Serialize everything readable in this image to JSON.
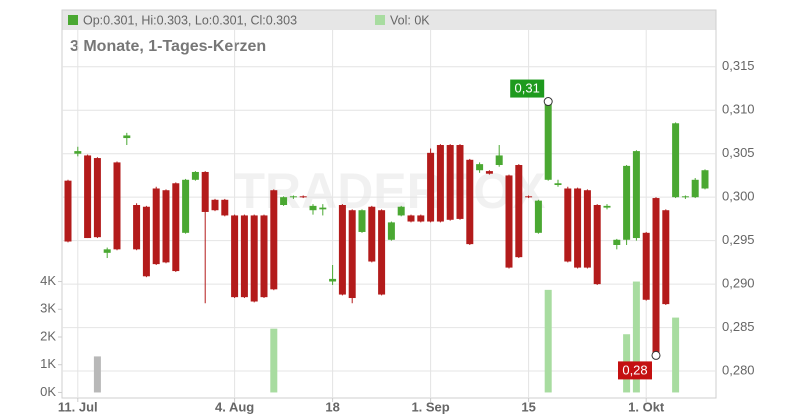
{
  "chart_data": {
    "type": "candlestick",
    "legend": [
      "Op:0.301, Hi:0.303, Lo:0.301, Cl:0.303",
      "Vol: 0K"
    ],
    "legend_colors": [
      "#4aa832",
      "#a8dca0"
    ],
    "subtitle": "3 Monate, 1-Tages-Kerzen",
    "watermark": "TRADERFOX",
    "categories": [
      null,
      "11. Jul",
      null,
      null,
      null,
      null,
      null,
      null,
      null,
      null,
      null,
      null,
      null,
      null,
      null,
      null,
      null,
      "4. Aug",
      null,
      null,
      null,
      null,
      null,
      null,
      null,
      null,
      null,
      "18",
      null,
      null,
      null,
      null,
      null,
      null,
      null,
      null,
      null,
      "1. Sep",
      null,
      null,
      null,
      null,
      null,
      null,
      null,
      null,
      null,
      "15",
      null,
      null,
      null,
      null,
      null,
      null,
      null,
      null,
      null,
      null,
      null,
      "1. Okt",
      null,
      null,
      null,
      null,
      null,
      null
    ],
    "candles": [
      [
        0.3019,
        0.302,
        0.2948,
        0.2949
      ],
      [
        0.305,
        0.3058,
        0.3047,
        0.3053
      ],
      [
        0.3048,
        0.3049,
        0.2953,
        0.2953
      ],
      [
        0.3045,
        0.3046,
        0.2953,
        0.2954
      ],
      [
        0.2936,
        0.2942,
        0.293,
        0.294
      ],
      [
        0.304,
        0.3041,
        0.2939,
        0.294
      ],
      [
        0.3068,
        0.3074,
        0.306,
        0.3071
      ],
      [
        0.2991,
        0.2993,
        0.2939,
        0.294
      ],
      [
        0.2989,
        0.299,
        0.2908,
        0.2909
      ],
      [
        0.301,
        0.3012,
        0.2922,
        0.2923
      ],
      [
        0.3008,
        0.3009,
        0.2924,
        0.2925
      ],
      [
        0.3016,
        0.3017,
        0.2914,
        0.2915
      ],
      [
        0.2959,
        0.3021,
        0.2958,
        0.302
      ],
      [
        0.302,
        0.303,
        0.3019,
        0.3029
      ],
      [
        0.3029,
        0.303,
        0.2878,
        0.2983
      ],
      [
        0.2997,
        0.2998,
        0.2984,
        0.2985
      ],
      [
        0.2997,
        0.2998,
        0.2978,
        0.2979
      ],
      [
        0.2979,
        0.298,
        0.2884,
        0.2885
      ],
      [
        0.2979,
        0.298,
        0.2884,
        0.2885
      ],
      [
        0.2979,
        0.298,
        0.2879,
        0.288
      ],
      [
        0.2979,
        0.298,
        0.2884,
        0.2885
      ],
      [
        0.3008,
        0.3009,
        0.2893,
        0.2894
      ],
      [
        0.2991,
        0.3001,
        0.299,
        0.3
      ],
      [
        0.3,
        0.3002,
        0.2998,
        0.3001
      ],
      [
        0.3001,
        0.3002,
        0.2999,
        0.3
      ],
      [
        0.2985,
        0.2992,
        0.298,
        0.299
      ],
      [
        0.2986,
        0.2992,
        0.2979,
        0.2988
      ],
      [
        0.2903,
        0.2922,
        0.2899,
        0.2906
      ],
      [
        0.2991,
        0.2992,
        0.2887,
        0.2888
      ],
      [
        0.2985,
        0.2986,
        0.2878,
        0.2884
      ],
      [
        0.296,
        0.2986,
        0.2959,
        0.2985
      ],
      [
        0.2989,
        0.299,
        0.2925,
        0.2926
      ],
      [
        0.2985,
        0.2986,
        0.2887,
        0.2888
      ],
      [
        0.2951,
        0.2972,
        0.295,
        0.2971
      ],
      [
        0.2979,
        0.299,
        0.2978,
        0.2989
      ],
      [
        0.2979,
        0.298,
        0.2971,
        0.2972
      ],
      [
        0.2979,
        0.298,
        0.2971,
        0.2972
      ],
      [
        0.3051,
        0.3056,
        0.2971,
        0.2972
      ],
      [
        0.306,
        0.3061,
        0.2971,
        0.2972
      ],
      [
        0.306,
        0.3061,
        0.2973,
        0.2974
      ],
      [
        0.306,
        0.3061,
        0.2974,
        0.2975
      ],
      [
        0.3043,
        0.3044,
        0.2945,
        0.2946
      ],
      [
        0.3031,
        0.304,
        0.3028,
        0.3038
      ],
      [
        0.303,
        0.3031,
        0.3026,
        0.3027
      ],
      [
        0.3037,
        0.306,
        0.3035,
        0.3048
      ],
      [
        0.3025,
        0.3026,
        0.2918,
        0.2919
      ],
      [
        0.3037,
        0.3038,
        0.293,
        0.2931
      ],
      [
        0.3001,
        0.3002,
        0.2999,
        0.3
      ],
      [
        0.2959,
        0.2997,
        0.2958,
        0.2996
      ],
      [
        0.302,
        0.311,
        0.3019,
        0.311
      ],
      [
        0.3014,
        0.302,
        0.3012,
        0.3016
      ],
      [
        0.301,
        0.3012,
        0.2925,
        0.2926
      ],
      [
        0.301,
        0.3011,
        0.2918,
        0.2919
      ],
      [
        0.3008,
        0.3009,
        0.2918,
        0.2919
      ],
      [
        0.2991,
        0.2992,
        0.2899,
        0.29
      ],
      [
        0.2988,
        0.2992,
        0.2986,
        0.299
      ],
      [
        0.2945,
        0.2952,
        0.294,
        0.2951
      ],
      [
        0.2951,
        0.3037,
        0.2945,
        0.3036
      ],
      [
        0.2953,
        0.3054,
        0.295,
        0.3053
      ],
      [
        0.2959,
        0.296,
        0.2881,
        0.2882
      ],
      [
        0.2999,
        0.3,
        0.2818,
        0.2819
      ],
      [
        0.2985,
        0.2986,
        0.2876,
        0.2877
      ],
      [
        0.3,
        0.3086,
        0.2999,
        0.3085
      ],
      [
        0.3,
        0.3002,
        0.2998,
        0.3001
      ],
      [
        0.3,
        0.3022,
        0.2999,
        0.302
      ],
      [
        0.301,
        0.3032,
        0.3009,
        0.3031
      ]
    ],
    "up_color": "#4aa832",
    "down_color": "#b31b1b",
    "volume": [
      0,
      0,
      0,
      1.3,
      0,
      0,
      0,
      0,
      0,
      0,
      0,
      0,
      0,
      0,
      0,
      0,
      0,
      0,
      0,
      0,
      0,
      2.3,
      0,
      0,
      0,
      0,
      0,
      0,
      0,
      0,
      0,
      0,
      0,
      0,
      0,
      0,
      0,
      0,
      0,
      0,
      0,
      0,
      0,
      0,
      0,
      0,
      0,
      0,
      0,
      3.7,
      0,
      0,
      0,
      0,
      0,
      0,
      0,
      2.1,
      4.0,
      0,
      0,
      0,
      2.7,
      0,
      0,
      0
    ],
    "volume_color": "#a8dca0",
    "volume_neutral": [
      3
    ],
    "volume_neutral_color": "#b8b8b8",
    "ylim": [
      0.2769,
      0.319
    ],
    "yticks": [
      {
        "value": 0.28,
        "label": "0,280"
      },
      {
        "value": 0.285,
        "label": "0,285"
      },
      {
        "value": 0.29,
        "label": "0,290"
      },
      {
        "value": 0.295,
        "label": "0,295"
      },
      {
        "value": 0.3,
        "label": "0,300"
      },
      {
        "value": 0.305,
        "label": "0,305"
      },
      {
        "value": 0.31,
        "label": "0,310"
      },
      {
        "value": 0.315,
        "label": "0,315"
      }
    ],
    "y2lim": [
      -0.2,
      13
    ],
    "y2ticks": [
      {
        "value": 0,
        "label": "0K"
      },
      {
        "value": 1,
        "label": "1K"
      },
      {
        "value": 2,
        "label": "2K"
      },
      {
        "value": 3,
        "label": "3K"
      },
      {
        "value": 4,
        "label": "4K"
      }
    ],
    "grid": true,
    "annotations": [
      {
        "text": "0,31",
        "value": 0.311,
        "color": "#1e9a1e"
      },
      {
        "text": "0,28",
        "value": 0.2818,
        "color": "#c41010"
      }
    ]
  }
}
